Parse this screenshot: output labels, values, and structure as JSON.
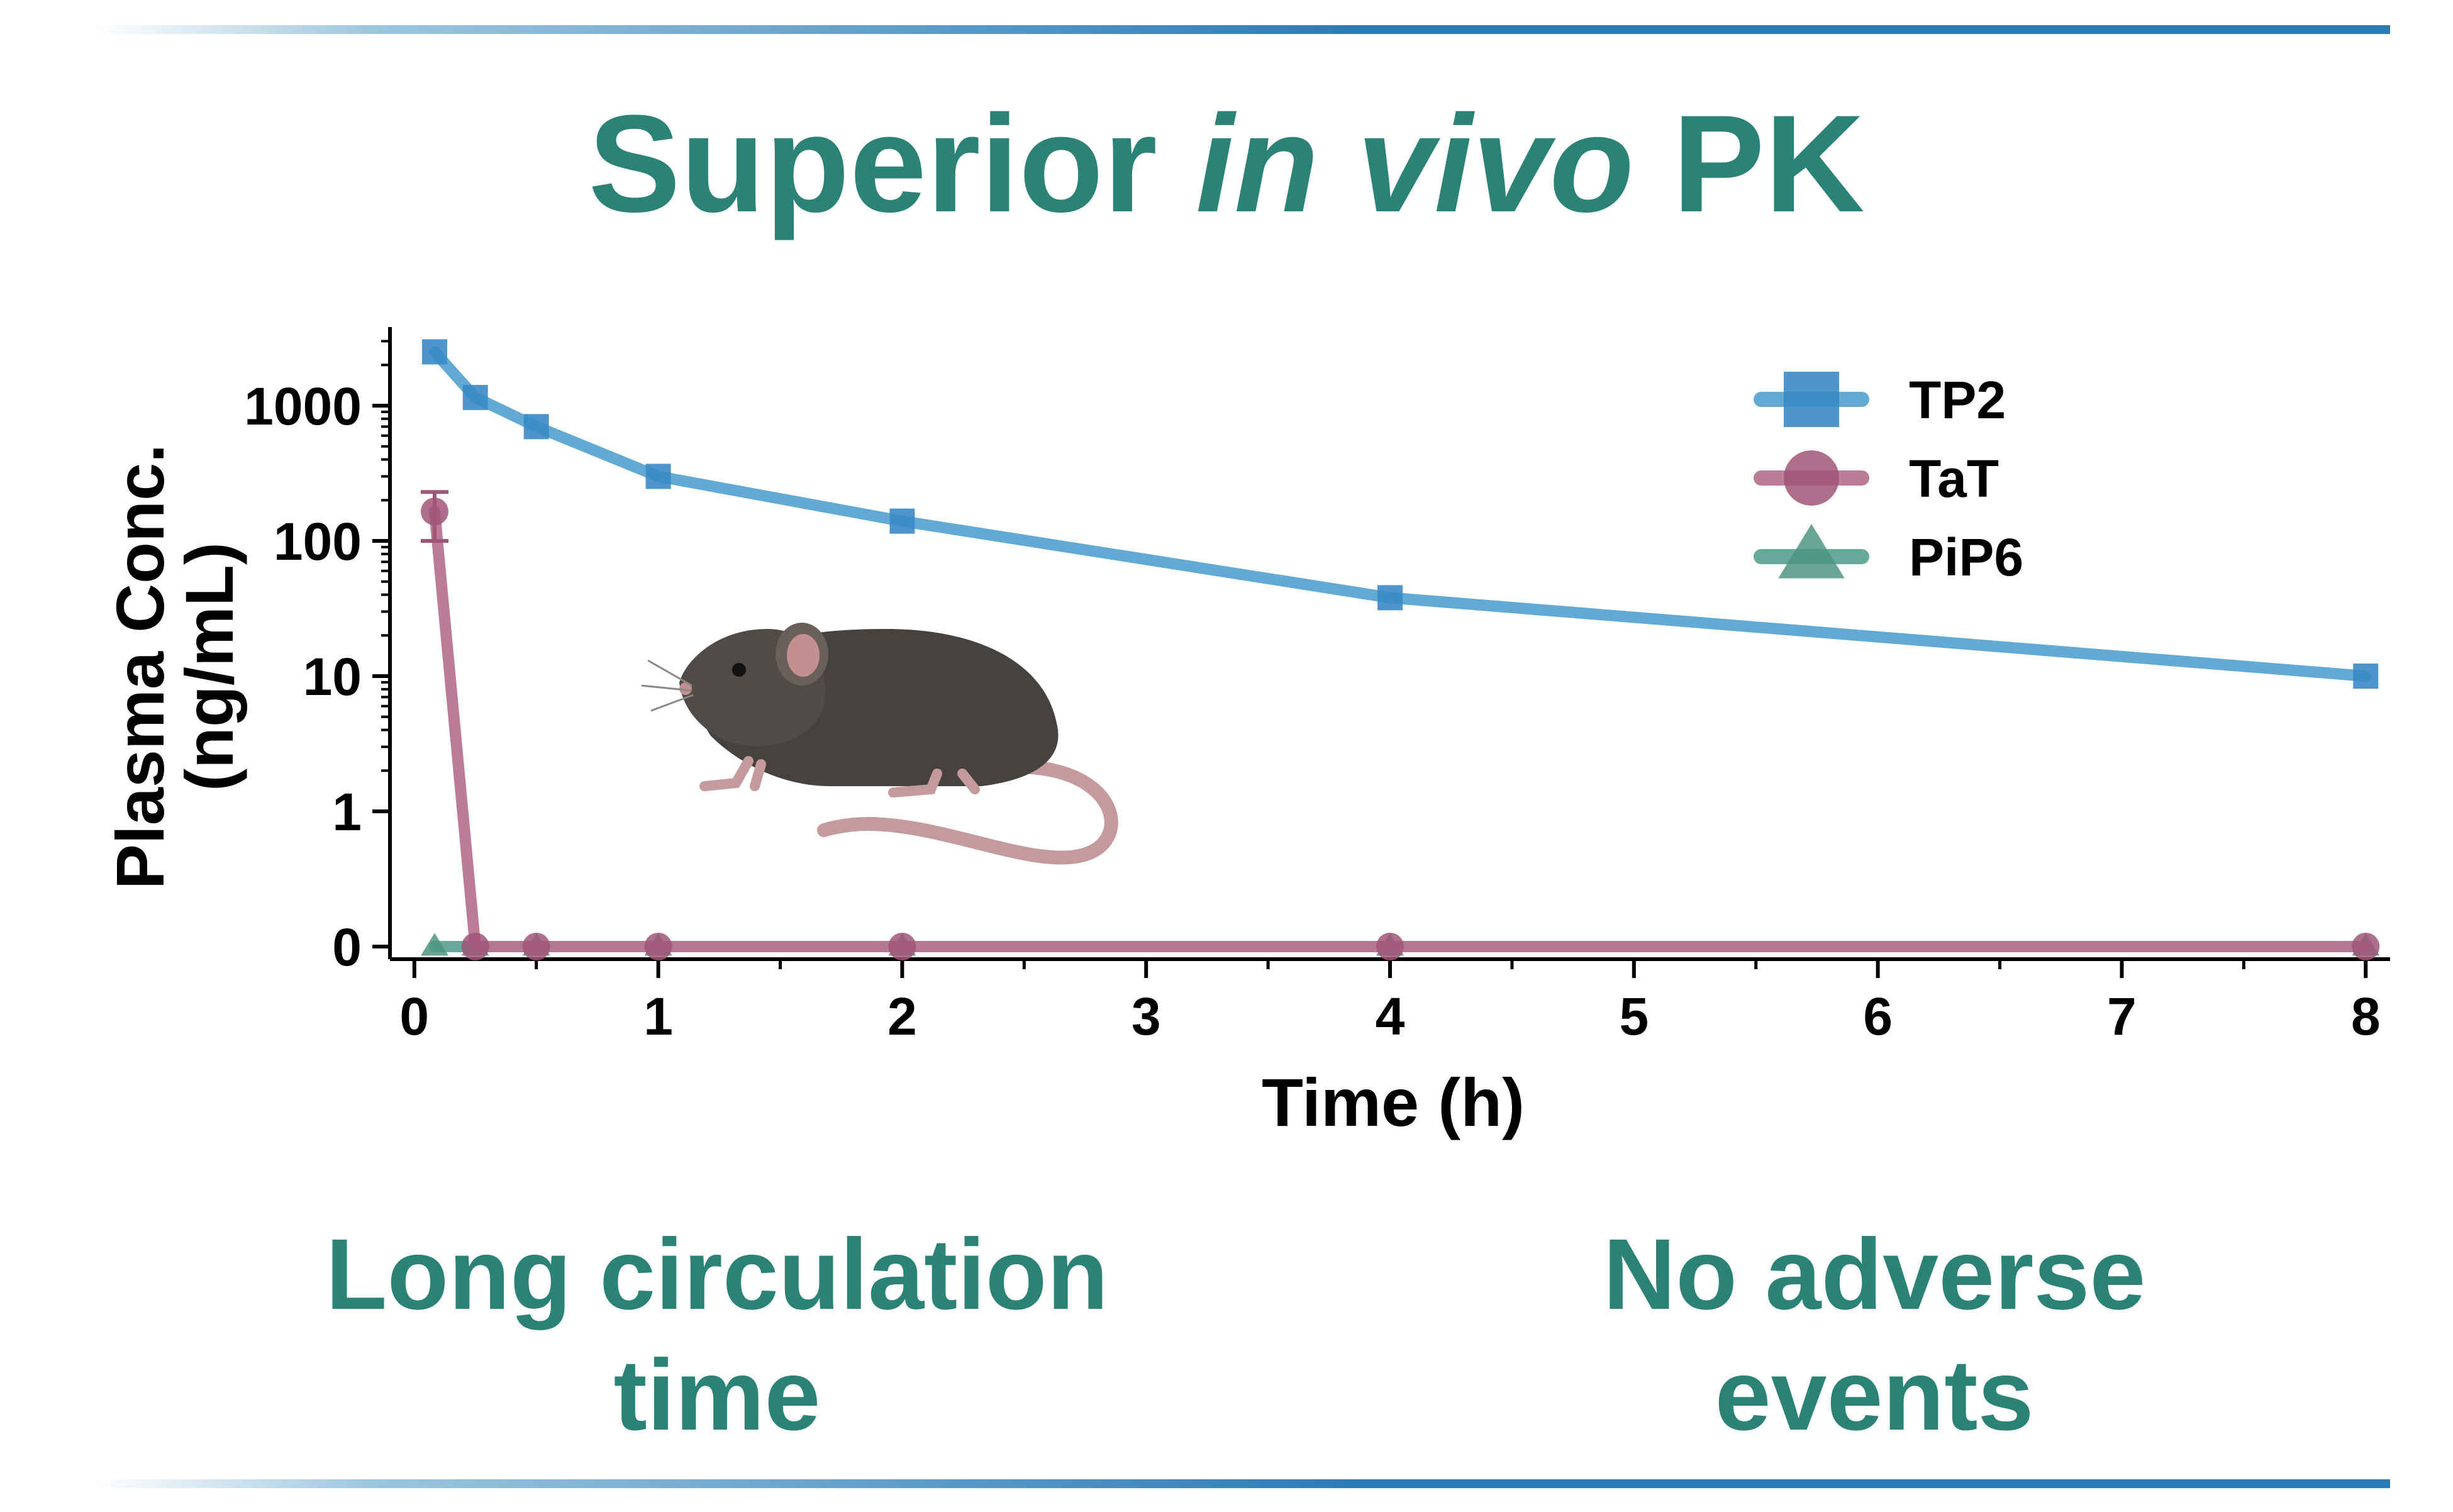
{
  "title": {
    "part1": "Superior",
    "italic": "in vivo",
    "part2": "PK"
  },
  "captions": {
    "left": [
      "Long circulation",
      "time"
    ],
    "right": [
      "No adverse",
      "events"
    ]
  },
  "colors": {
    "teal_text": "#2b8377",
    "rule_blue": "#2c7ab6",
    "tp2": "#5aa5d2",
    "tp2_marker": "#3a8ac6",
    "tat": "#b87592",
    "tat_marker": "#a05578",
    "pip6": "#5fa596",
    "pip6_marker": "#4f9584"
  },
  "icons": [
    "mouse-illustration"
  ],
  "chart_data": {
    "type": "line",
    "xlabel": "Time (h)",
    "ylabel": [
      "Plasma Conc.",
      "(ng/mL)"
    ],
    "xlim": [
      -0.1,
      8.1
    ],
    "x_ticks": [
      0,
      1,
      2,
      3,
      4,
      5,
      6,
      7,
      8
    ],
    "y_scale": "log (zero-broken axis)",
    "y_ticks": [
      {
        "value": 0,
        "label": "0"
      },
      {
        "value": 1,
        "label": "1"
      },
      {
        "value": 10,
        "label": "10"
      },
      {
        "value": 100,
        "label": "100"
      },
      {
        "value": 1000,
        "label": "1000"
      }
    ],
    "legend_position": "top-right",
    "series": [
      {
        "name": "TP2",
        "marker": "square",
        "x": [
          0.083,
          0.25,
          0.5,
          1,
          2,
          4,
          8
        ],
        "y": [
          2500,
          1150,
          700,
          300,
          140,
          38,
          10
        ]
      },
      {
        "name": "TaT",
        "marker": "circle",
        "x": [
          0.083,
          0.25,
          0.5,
          1,
          2,
          4,
          8
        ],
        "y": [
          165,
          0,
          0,
          0,
          0,
          0,
          0
        ],
        "err": [
          65,
          0,
          0,
          0,
          0,
          0,
          0
        ]
      },
      {
        "name": "PiP6",
        "marker": "triangle",
        "x": [
          0.083,
          0.25,
          0.5,
          1,
          2,
          4,
          8
        ],
        "y": [
          0,
          0,
          0,
          0,
          0,
          0,
          0
        ]
      }
    ]
  }
}
